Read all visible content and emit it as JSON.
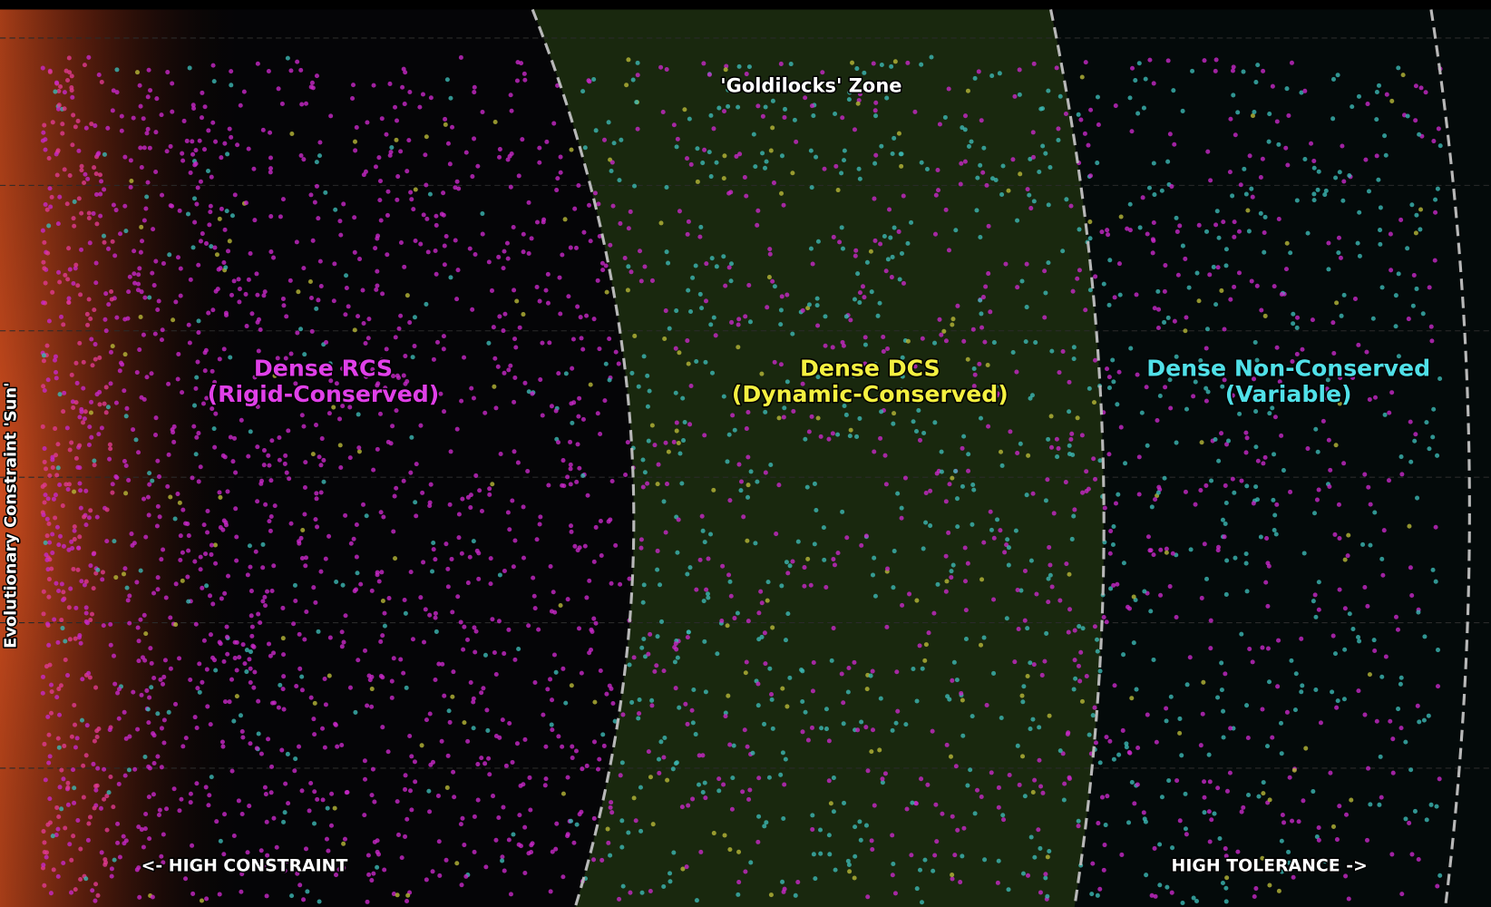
{
  "zone_label": "'Goldilocks' Zone",
  "regions": [
    {
      "title": "Dense RCS",
      "subtitle": "(Rigid-Conserved)",
      "color": "#e040e8"
    },
    {
      "title": "Dense DCS",
      "subtitle": "(Dynamic-Conserved)",
      "color": "#f4f040"
    },
    {
      "title": "Dense Non-Conserved",
      "subtitle": "(Variable)",
      "color": "#50e0e8"
    }
  ],
  "arrows": {
    "left": "<- HIGH CONSTRAINT",
    "right": "HIGH TOLERANCE ->"
  },
  "sun_label": "Evolutionary Constraint 'Sun'"
}
